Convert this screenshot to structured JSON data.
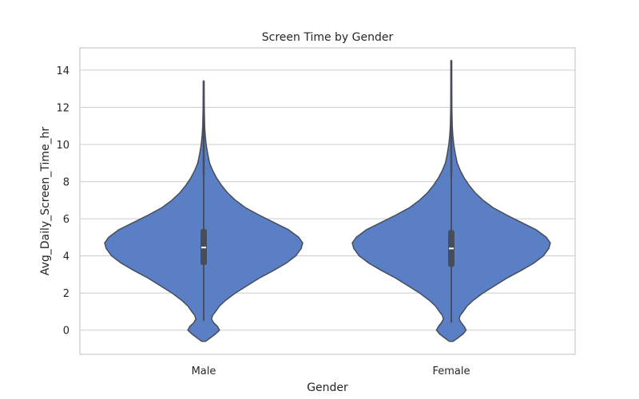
{
  "chart_data": {
    "type": "violin",
    "title": "Screen Time by Gender",
    "xlabel": "Gender",
    "ylabel": "Avg_Daily_Screen_Time_hr",
    "categories": [
      "Male",
      "Female"
    ],
    "ylim": [
      -1.3,
      15.2
    ],
    "yticks": [
      0,
      2,
      4,
      6,
      8,
      10,
      12,
      14
    ],
    "grid": true,
    "colors": {
      "fill": "#5a7fc5",
      "outline": "#474d5a",
      "box": "#474d5a",
      "median": "#ffffff",
      "grid": "#cccccc",
      "frame": "#cccccc"
    },
    "violins": [
      {
        "category": "Male",
        "range": [
          -0.6,
          13.4
        ],
        "q1": 3.5,
        "median": 4.45,
        "q3": 5.45,
        "whisker": [
          0.5,
          8.4
        ],
        "density": [
          [
            -0.6,
            0.02
          ],
          [
            -0.4,
            0.07
          ],
          [
            -0.2,
            0.12
          ],
          [
            0.0,
            0.16
          ],
          [
            0.2,
            0.14
          ],
          [
            0.4,
            0.1
          ],
          [
            0.6,
            0.08
          ],
          [
            0.8,
            0.09
          ],
          [
            1.0,
            0.12
          ],
          [
            1.3,
            0.16
          ],
          [
            1.6,
            0.22
          ],
          [
            2.0,
            0.32
          ],
          [
            2.4,
            0.44
          ],
          [
            2.8,
            0.56
          ],
          [
            3.2,
            0.7
          ],
          [
            3.6,
            0.83
          ],
          [
            4.0,
            0.93
          ],
          [
            4.4,
            0.985
          ],
          [
            4.7,
            1.0
          ],
          [
            5.0,
            0.96
          ],
          [
            5.4,
            0.86
          ],
          [
            5.8,
            0.71
          ],
          [
            6.2,
            0.56
          ],
          [
            6.6,
            0.42
          ],
          [
            7.0,
            0.32
          ],
          [
            7.4,
            0.24
          ],
          [
            7.8,
            0.18
          ],
          [
            8.2,
            0.13
          ],
          [
            8.6,
            0.09
          ],
          [
            9.0,
            0.06
          ],
          [
            9.5,
            0.04
          ],
          [
            10.0,
            0.025
          ],
          [
            10.5,
            0.015
          ],
          [
            11.0,
            0.01
          ],
          [
            12.0,
            0.006
          ],
          [
            13.4,
            0.003
          ]
        ]
      },
      {
        "category": "Female",
        "range": [
          -0.6,
          14.5
        ],
        "q1": 3.4,
        "median": 4.4,
        "q3": 5.4,
        "whisker": [
          0.4,
          8.3
        ],
        "density": [
          [
            -0.6,
            0.02
          ],
          [
            -0.4,
            0.07
          ],
          [
            -0.2,
            0.12
          ],
          [
            0.0,
            0.15
          ],
          [
            0.2,
            0.13
          ],
          [
            0.4,
            0.1
          ],
          [
            0.6,
            0.08
          ],
          [
            0.8,
            0.09
          ],
          [
            1.0,
            0.12
          ],
          [
            1.3,
            0.16
          ],
          [
            1.6,
            0.22
          ],
          [
            2.0,
            0.32
          ],
          [
            2.4,
            0.44
          ],
          [
            2.8,
            0.56
          ],
          [
            3.2,
            0.7
          ],
          [
            3.6,
            0.83
          ],
          [
            4.0,
            0.93
          ],
          [
            4.4,
            0.985
          ],
          [
            4.7,
            1.0
          ],
          [
            5.0,
            0.96
          ],
          [
            5.4,
            0.86
          ],
          [
            5.8,
            0.71
          ],
          [
            6.2,
            0.56
          ],
          [
            6.6,
            0.42
          ],
          [
            7.0,
            0.32
          ],
          [
            7.4,
            0.24
          ],
          [
            7.8,
            0.18
          ],
          [
            8.2,
            0.13
          ],
          [
            8.6,
            0.09
          ],
          [
            9.0,
            0.06
          ],
          [
            9.5,
            0.04
          ],
          [
            10.0,
            0.025
          ],
          [
            10.5,
            0.015
          ],
          [
            11.0,
            0.01
          ],
          [
            12.0,
            0.006
          ],
          [
            13.0,
            0.004
          ],
          [
            14.5,
            0.003
          ]
        ]
      }
    ]
  }
}
